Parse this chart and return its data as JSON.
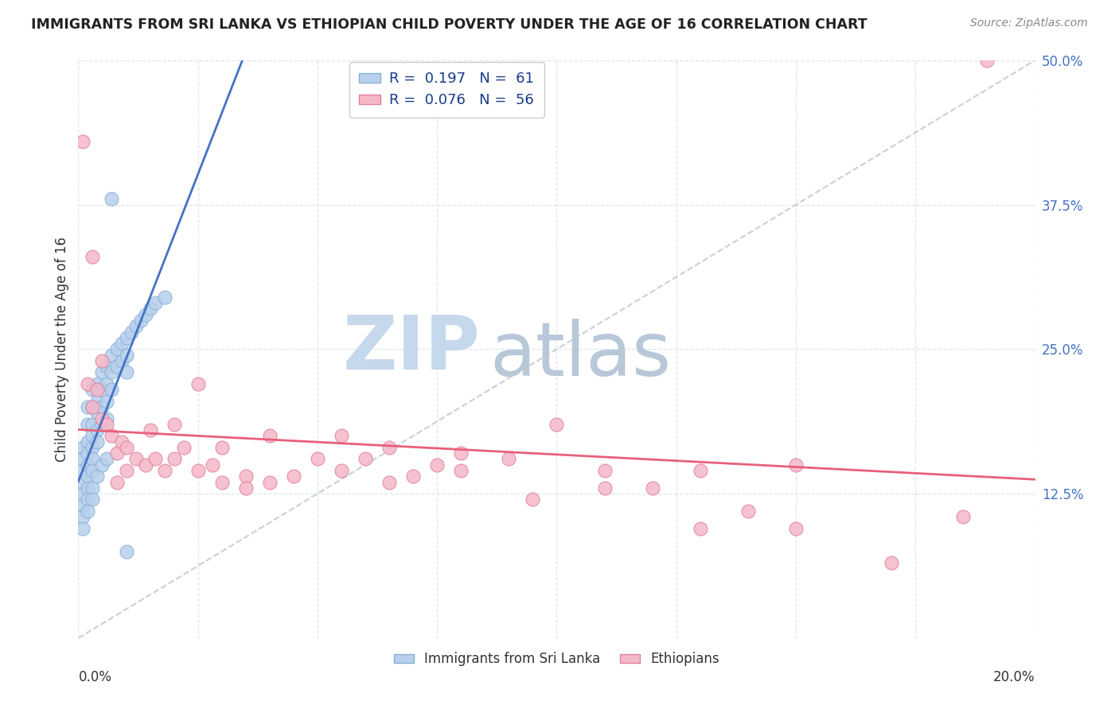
{
  "title": "IMMIGRANTS FROM SRI LANKA VS ETHIOPIAN CHILD POVERTY UNDER THE AGE OF 16 CORRELATION CHART",
  "source": "Source: ZipAtlas.com",
  "ylabel": "Child Poverty Under the Age of 16",
  "xmin": 0.0,
  "xmax": 0.2,
  "ymin": 0.0,
  "ymax": 0.5,
  "ytick_vals": [
    0.0,
    0.125,
    0.25,
    0.375,
    0.5
  ],
  "ytick_labels": [
    "",
    "12.5%",
    "25.0%",
    "37.5%",
    "50.0%"
  ],
  "sri_lanka_color": "#b8d0ec",
  "sri_lanka_edge_color": "#88b0d8",
  "ethiopians_color": "#f5b8c8",
  "ethiopians_edge_color": "#e080a0",
  "sri_lanka_trend_color": "#4472c4",
  "ethiopians_trend_color": "#e8607a",
  "sri_lanka_R": 0.197,
  "sri_lanka_N": 61,
  "ethiopians_R": 0.076,
  "ethiopians_N": 56,
  "watermark_zip": "ZIP",
  "watermark_atlas": "atlas",
  "watermark_color_zip": "#c5d8ec",
  "watermark_color_atlas": "#b8c8d8",
  "grid_color": "#dde6ee",
  "diag_color": "#c0c8d0",
  "ytick_color": "#4472c4",
  "title_color": "#222222",
  "source_color": "#888888",
  "legend_label_color": "#1a3a8a",
  "bottom_legend_color": "#333333",
  "sri_lanka_x": [
    0.001,
    0.001,
    0.001,
    0.001,
    0.001,
    0.001,
    0.002,
    0.002,
    0.002,
    0.002,
    0.002,
    0.002,
    0.002,
    0.003,
    0.003,
    0.003,
    0.003,
    0.003,
    0.003,
    0.003,
    0.004,
    0.004,
    0.004,
    0.004,
    0.004,
    0.005,
    0.005,
    0.005,
    0.005,
    0.006,
    0.006,
    0.006,
    0.006,
    0.007,
    0.007,
    0.007,
    0.008,
    0.008,
    0.009,
    0.009,
    0.01,
    0.01,
    0.01,
    0.011,
    0.012,
    0.013,
    0.014,
    0.015,
    0.016,
    0.018,
    0.001,
    0.001,
    0.002,
    0.002,
    0.003,
    0.003,
    0.004,
    0.005,
    0.006,
    0.007,
    0.01
  ],
  "sri_lanka_y": [
    0.165,
    0.155,
    0.145,
    0.135,
    0.125,
    0.115,
    0.2,
    0.185,
    0.17,
    0.16,
    0.15,
    0.14,
    0.13,
    0.215,
    0.2,
    0.185,
    0.175,
    0.165,
    0.155,
    0.145,
    0.22,
    0.205,
    0.195,
    0.18,
    0.17,
    0.23,
    0.215,
    0.2,
    0.185,
    0.235,
    0.22,
    0.205,
    0.19,
    0.245,
    0.23,
    0.215,
    0.25,
    0.235,
    0.255,
    0.24,
    0.26,
    0.245,
    0.23,
    0.265,
    0.27,
    0.275,
    0.28,
    0.285,
    0.29,
    0.295,
    0.105,
    0.095,
    0.12,
    0.11,
    0.13,
    0.12,
    0.14,
    0.15,
    0.155,
    0.38,
    0.075
  ],
  "ethiopians_x": [
    0.001,
    0.002,
    0.003,
    0.004,
    0.005,
    0.006,
    0.007,
    0.008,
    0.009,
    0.01,
    0.012,
    0.014,
    0.016,
    0.018,
    0.02,
    0.022,
    0.025,
    0.028,
    0.03,
    0.035,
    0.04,
    0.045,
    0.05,
    0.055,
    0.06,
    0.065,
    0.07,
    0.075,
    0.08,
    0.09,
    0.1,
    0.11,
    0.12,
    0.13,
    0.14,
    0.15,
    0.003,
    0.005,
    0.008,
    0.01,
    0.015,
    0.02,
    0.025,
    0.03,
    0.035,
    0.04,
    0.055,
    0.065,
    0.08,
    0.095,
    0.11,
    0.13,
    0.15,
    0.17,
    0.185,
    0.19
  ],
  "ethiopians_y": [
    0.43,
    0.22,
    0.2,
    0.215,
    0.19,
    0.185,
    0.175,
    0.16,
    0.17,
    0.165,
    0.155,
    0.15,
    0.155,
    0.145,
    0.185,
    0.165,
    0.22,
    0.15,
    0.165,
    0.14,
    0.175,
    0.14,
    0.155,
    0.175,
    0.155,
    0.165,
    0.14,
    0.15,
    0.16,
    0.155,
    0.185,
    0.145,
    0.13,
    0.145,
    0.11,
    0.15,
    0.33,
    0.24,
    0.135,
    0.145,
    0.18,
    0.155,
    0.145,
    0.135,
    0.13,
    0.135,
    0.145,
    0.135,
    0.145,
    0.12,
    0.13,
    0.095,
    0.095,
    0.065,
    0.105,
    0.5
  ]
}
